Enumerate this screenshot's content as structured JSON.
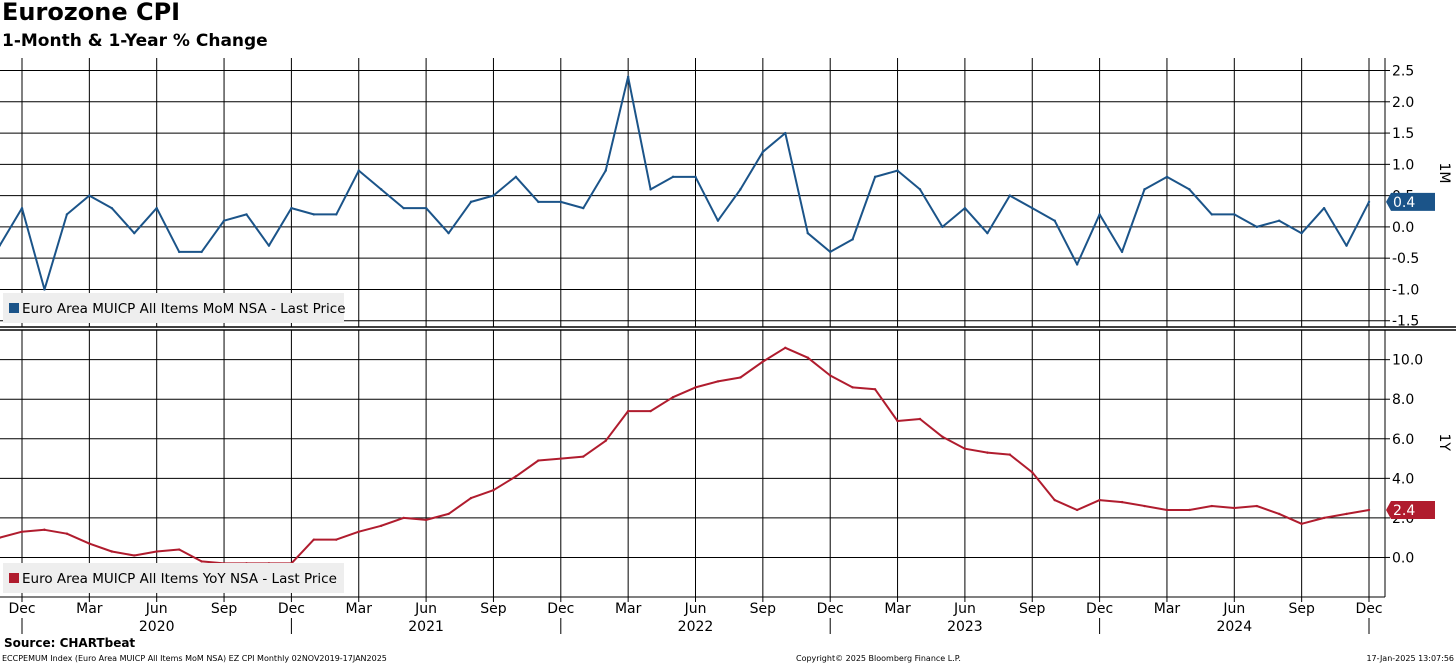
{
  "header": {
    "title": "Eurozone CPI",
    "subtitle": "1-Month & 1-Year % Change"
  },
  "footer": {
    "source": "Source: CHARTbeat",
    "index_info": "ECCPEMUM Index (Euro Area MUICP All Items MoM NSA) EZ CPI  Monthly 02NOV2019-17JAN2025",
    "copyright": "Copyright© 2025 Bloomberg Finance L.P.",
    "timestamp": "17-Jan-2025 13:07:56"
  },
  "colors": {
    "mom_series": "#1b5489",
    "yoy_series": "#b01c2e",
    "grid": "#000000",
    "legend_bg": "#eeeeee"
  },
  "chart_data": [
    {
      "type": "line",
      "panel": "top",
      "axis_label": "1M",
      "series": [
        {
          "name": "Euro Area MUICP All Items MoM NSA - Last Price",
          "x": [
            "2019-11",
            "2019-12",
            "2020-01",
            "2020-02",
            "2020-03",
            "2020-04",
            "2020-05",
            "2020-06",
            "2020-07",
            "2020-08",
            "2020-09",
            "2020-10",
            "2020-11",
            "2020-12",
            "2021-01",
            "2021-02",
            "2021-03",
            "2021-04",
            "2021-05",
            "2021-06",
            "2021-07",
            "2021-08",
            "2021-09",
            "2021-10",
            "2021-11",
            "2021-12",
            "2022-01",
            "2022-02",
            "2022-03",
            "2022-04",
            "2022-05",
            "2022-06",
            "2022-07",
            "2022-08",
            "2022-09",
            "2022-10",
            "2022-11",
            "2022-12",
            "2023-01",
            "2023-02",
            "2023-03",
            "2023-04",
            "2023-05",
            "2023-06",
            "2023-07",
            "2023-08",
            "2023-09",
            "2023-10",
            "2023-11",
            "2023-12",
            "2024-01",
            "2024-02",
            "2024-03",
            "2024-04",
            "2024-05",
            "2024-06",
            "2024-07",
            "2024-08",
            "2024-09",
            "2024-10",
            "2024-11",
            "2024-12"
          ],
          "values": [
            -0.3,
            0.3,
            -1.0,
            0.2,
            0.5,
            0.3,
            -0.1,
            0.3,
            -0.4,
            -0.4,
            0.1,
            0.2,
            -0.3,
            0.3,
            0.2,
            0.2,
            0.9,
            0.6,
            0.3,
            0.3,
            -0.1,
            0.4,
            0.5,
            0.8,
            0.4,
            0.4,
            0.3,
            0.9,
            2.4,
            0.6,
            0.8,
            0.8,
            0.1,
            0.6,
            1.2,
            1.5,
            -0.1,
            -0.4,
            -0.2,
            0.8,
            0.9,
            0.6,
            0.0,
            0.3,
            -0.1,
            0.5,
            0.3,
            0.1,
            -0.6,
            0.2,
            -0.4,
            0.6,
            0.8,
            0.6,
            0.2,
            0.2,
            0.0,
            0.1,
            -0.1,
            0.3,
            -0.3,
            0.4
          ]
        }
      ],
      "last_value": "0.4",
      "ylim": [
        -1.6,
        2.7
      ],
      "yticks": [
        "2.5",
        "2.0",
        "1.5",
        "1.0",
        "0.5",
        "0.0",
        "-0.5",
        "-1.0",
        "-1.5"
      ],
      "ytick_values": [
        2.5,
        2.0,
        1.5,
        1.0,
        0.5,
        0.0,
        -0.5,
        -1.0,
        -1.5
      ],
      "legend_position": "bottom-left",
      "grid": true
    },
    {
      "type": "line",
      "panel": "bottom",
      "axis_label": "1Y",
      "series": [
        {
          "name": "Euro Area MUICP All Items YoY NSA - Last Price",
          "x": [
            "2019-11",
            "2019-12",
            "2020-01",
            "2020-02",
            "2020-03",
            "2020-04",
            "2020-05",
            "2020-06",
            "2020-07",
            "2020-08",
            "2020-09",
            "2020-10",
            "2020-11",
            "2020-12",
            "2021-01",
            "2021-02",
            "2021-03",
            "2021-04",
            "2021-05",
            "2021-06",
            "2021-07",
            "2021-08",
            "2021-09",
            "2021-10",
            "2021-11",
            "2021-12",
            "2022-01",
            "2022-02",
            "2022-03",
            "2022-04",
            "2022-05",
            "2022-06",
            "2022-07",
            "2022-08",
            "2022-09",
            "2022-10",
            "2022-11",
            "2022-12",
            "2023-01",
            "2023-02",
            "2023-03",
            "2023-04",
            "2023-05",
            "2023-06",
            "2023-07",
            "2023-08",
            "2023-09",
            "2023-10",
            "2023-11",
            "2023-12",
            "2024-01",
            "2024-02",
            "2024-03",
            "2024-04",
            "2024-05",
            "2024-06",
            "2024-07",
            "2024-08",
            "2024-09",
            "2024-10",
            "2024-11",
            "2024-12"
          ],
          "values": [
            1.0,
            1.3,
            1.4,
            1.2,
            0.7,
            0.3,
            0.1,
            0.3,
            0.4,
            -0.2,
            -0.3,
            -0.3,
            -0.3,
            -0.3,
            0.9,
            0.9,
            1.3,
            1.6,
            2.0,
            1.9,
            2.2,
            3.0,
            3.4,
            4.1,
            4.9,
            5.0,
            5.1,
            5.9,
            7.4,
            7.4,
            8.1,
            8.6,
            8.9,
            9.1,
            9.9,
            10.6,
            10.1,
            9.2,
            8.6,
            8.5,
            6.9,
            7.0,
            6.1,
            5.5,
            5.3,
            5.2,
            4.3,
            2.9,
            2.4,
            2.9,
            2.8,
            2.6,
            2.4,
            2.4,
            2.6,
            2.5,
            2.6,
            2.2,
            1.7,
            2.0,
            2.2,
            2.4
          ]
        }
      ],
      "last_value": "2.4",
      "ylim": [
        -2.0,
        11.5
      ],
      "yticks": [
        "10.0",
        "8.0",
        "6.0",
        "4.0",
        "2.0",
        "0.0"
      ],
      "ytick_values": [
        10,
        8,
        6,
        4,
        2,
        0
      ],
      "legend_position": "bottom-left",
      "grid": true
    }
  ],
  "x_axis": {
    "month_labels": [
      {
        "label": "Dec",
        "date": "2019-12"
      },
      {
        "label": "Mar",
        "date": "2020-03"
      },
      {
        "label": "Jun",
        "date": "2020-06"
      },
      {
        "label": "Sep",
        "date": "2020-09"
      },
      {
        "label": "Dec",
        "date": "2020-12"
      },
      {
        "label": "Mar",
        "date": "2021-03"
      },
      {
        "label": "Jun",
        "date": "2021-06"
      },
      {
        "label": "Sep",
        "date": "2021-09"
      },
      {
        "label": "Dec",
        "date": "2021-12"
      },
      {
        "label": "Mar",
        "date": "2022-03"
      },
      {
        "label": "Jun",
        "date": "2022-06"
      },
      {
        "label": "Sep",
        "date": "2022-09"
      },
      {
        "label": "Dec",
        "date": "2022-12"
      },
      {
        "label": "Mar",
        "date": "2023-03"
      },
      {
        "label": "Jun",
        "date": "2023-06"
      },
      {
        "label": "Sep",
        "date": "2023-09"
      },
      {
        "label": "Dec",
        "date": "2023-12"
      },
      {
        "label": "Mar",
        "date": "2024-03"
      },
      {
        "label": "Jun",
        "date": "2024-06"
      },
      {
        "label": "Sep",
        "date": "2024-09"
      },
      {
        "label": "Dec",
        "date": "2024-12"
      }
    ],
    "year_labels": [
      {
        "label": "2020",
        "date": "2020-06"
      },
      {
        "label": "2021",
        "date": "2021-06"
      },
      {
        "label": "2022",
        "date": "2022-06"
      },
      {
        "label": "2023",
        "date": "2023-06"
      },
      {
        "label": "2024",
        "date": "2024-06"
      }
    ],
    "year_boundaries": [
      "2019-12",
      "2020-12",
      "2021-12",
      "2022-12",
      "2023-12",
      "2024-12"
    ]
  }
}
